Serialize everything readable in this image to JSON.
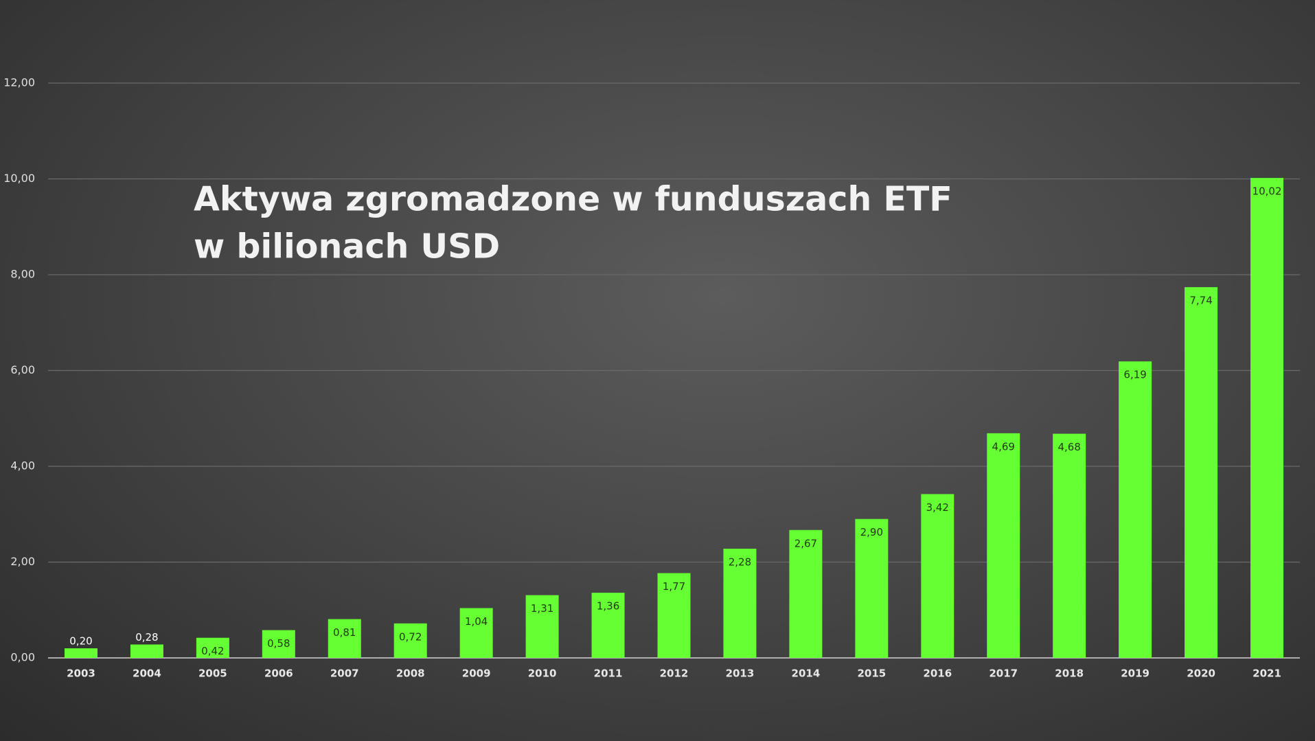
{
  "chart_data": {
    "type": "bar",
    "title": "Aktywa zgromadzone w funduszach ETF",
    "subtitle": "w bilionach USD",
    "categories": [
      "2003",
      "2004",
      "2005",
      "2006",
      "2007",
      "2008",
      "2009",
      "2010",
      "2011",
      "2012",
      "2013",
      "2014",
      "2015",
      "2016",
      "2017",
      "2018",
      "2019",
      "2020",
      "2021"
    ],
    "values": [
      0.2,
      0.28,
      0.42,
      0.58,
      0.81,
      0.72,
      1.04,
      1.31,
      1.36,
      1.77,
      2.28,
      2.67,
      2.9,
      3.42,
      4.69,
      4.68,
      6.19,
      7.74,
      10.02
    ],
    "value_labels": [
      "0,20",
      "0,28",
      "0,42",
      "0,58",
      "0,81",
      "0,72",
      "1,04",
      "1,31",
      "1,36",
      "1,77",
      "2,28",
      "2,67",
      "2,90",
      "3,42",
      "4,69",
      "4,68",
      "6,19",
      "7,74",
      "10,02"
    ],
    "color": "#66ff33",
    "ylim": [
      0,
      12
    ],
    "yticks": [
      {
        "value": 0,
        "label": "0,00"
      },
      {
        "value": 2,
        "label": "2,00"
      },
      {
        "value": 4,
        "label": "4,00"
      },
      {
        "value": 6,
        "label": "6,00"
      },
      {
        "value": 8,
        "label": "8,00"
      },
      {
        "value": 10,
        "label": "10,00"
      },
      {
        "value": 12,
        "label": "12,00"
      }
    ],
    "grid": true
  }
}
